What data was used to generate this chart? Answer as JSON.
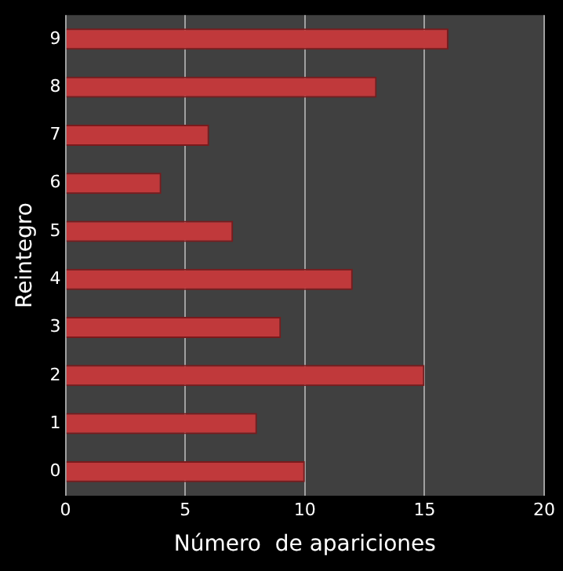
{
  "chart_data": {
    "type": "bar",
    "orientation": "horizontal",
    "xlabel": "Número  de apariciones",
    "ylabel": "Reintegro",
    "categories": [
      "9",
      "8",
      "7",
      "6",
      "5",
      "4",
      "3",
      "2",
      "1",
      "0"
    ],
    "values": [
      16,
      13,
      6,
      4,
      7,
      12,
      9,
      15,
      8,
      10
    ],
    "color": "#c0393b",
    "xlim": [
      0,
      20
    ],
    "xticks": [
      0,
      5,
      10,
      15,
      20
    ],
    "grid": "x"
  }
}
